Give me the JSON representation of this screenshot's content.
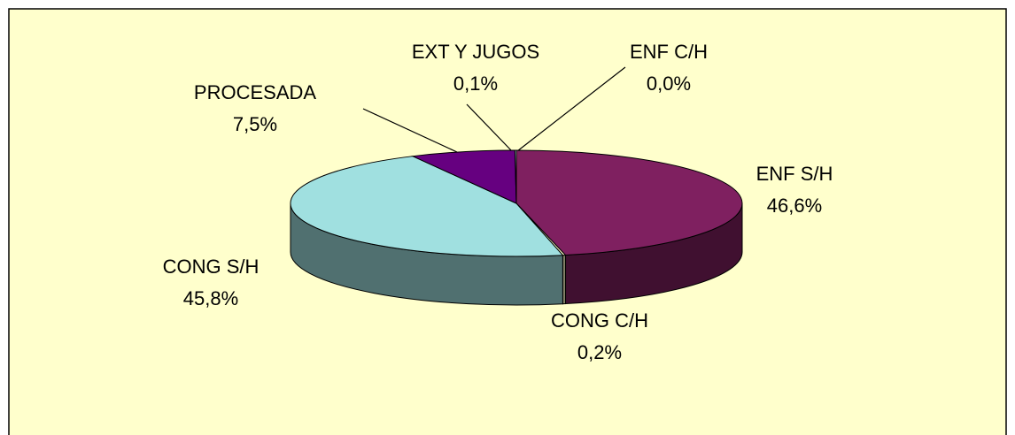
{
  "chart_data": {
    "type": "pie",
    "categories": [
      "ENF S/H",
      "CONG C/H",
      "CONG S/H",
      "PROCESADA",
      "EXT Y JUGOS",
      "ENF C/H"
    ],
    "values": [
      46.6,
      0.2,
      45.8,
      7.5,
      0.1,
      0.0
    ],
    "value_labels": [
      "46,6%",
      "0,2%",
      "45,8%",
      "7,5%",
      "0,1%",
      "0,0%"
    ],
    "colors": [
      "#7f2060",
      "#ffffcc",
      "#a0e0e0",
      "#660080",
      "#ccffff",
      "#9999ff"
    ]
  }
}
